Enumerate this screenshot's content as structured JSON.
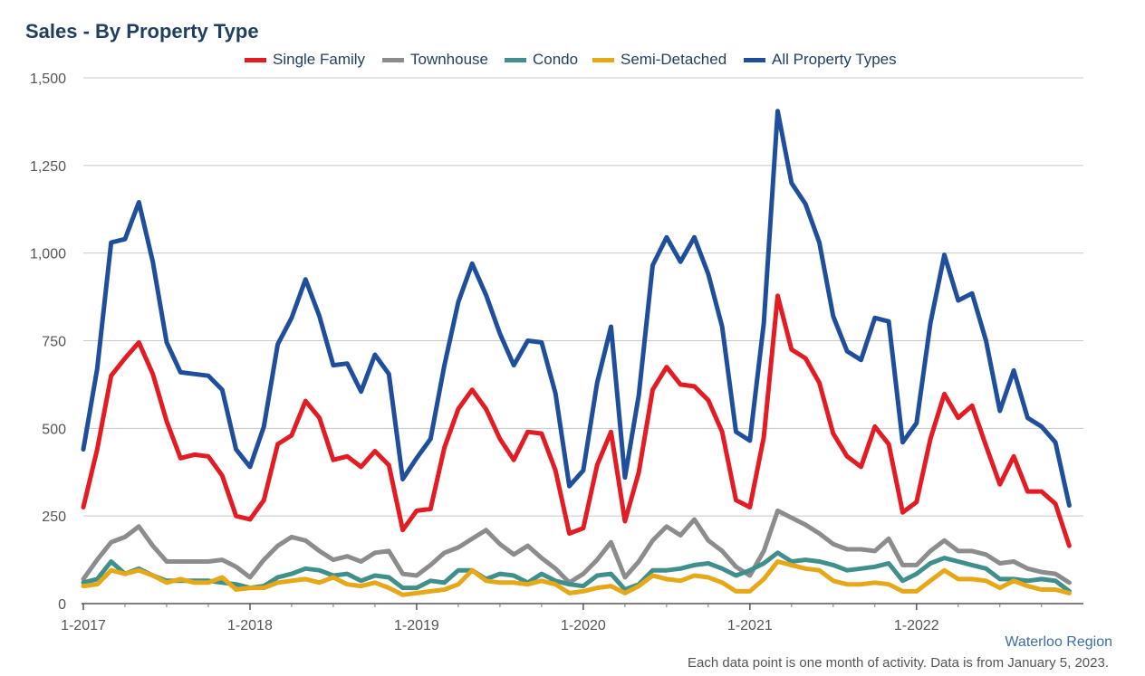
{
  "title": "Sales - By Property Type",
  "footer": {
    "region": "Waterloo Region",
    "note": "Each data point is one month of activity. Data is from January 5, 2023."
  },
  "chart_data": {
    "type": "line",
    "title": "Sales - By Property Type",
    "xlabel": "",
    "ylabel": "",
    "ylim": [
      0,
      1500
    ],
    "y_ticks": [
      0,
      250,
      500,
      750,
      1000,
      1250,
      1500
    ],
    "y_tick_labels": [
      "0",
      "250",
      "500",
      "750",
      "1,000",
      "1,250",
      "1,500"
    ],
    "x_start": "1-2017",
    "x_tick_labels": [
      "1-2017",
      "1-2018",
      "1-2019",
      "1-2020",
      "1-2021",
      "1-2022"
    ],
    "grid": true,
    "legend_position": "top",
    "series": [
      {
        "name": "Single Family",
        "color": "#e31b23",
        "values": [
          275,
          440,
          650,
          700,
          745,
          655,
          520,
          415,
          425,
          420,
          365,
          250,
          240,
          295,
          455,
          480,
          578,
          530,
          410,
          420,
          390,
          435,
          395,
          210,
          265,
          270,
          445,
          555,
          610,
          555,
          470,
          410,
          490,
          485,
          380,
          200,
          215,
          395,
          490,
          235,
          375,
          610,
          675,
          625,
          620,
          580,
          490,
          295,
          275,
          475,
          878,
          725,
          700,
          630,
          485,
          420,
          390,
          505,
          455,
          260,
          290,
          470,
          598,
          530,
          565,
          450,
          340,
          420,
          320,
          320,
          285,
          165
        ]
      },
      {
        "name": "Townhouse",
        "color": "#8c8c8c",
        "values": [
          70,
          125,
          175,
          190,
          220,
          165,
          120,
          120,
          120,
          120,
          125,
          105,
          75,
          125,
          165,
          190,
          180,
          150,
          125,
          135,
          120,
          145,
          150,
          85,
          80,
          110,
          145,
          160,
          185,
          210,
          170,
          140,
          165,
          130,
          100,
          60,
          85,
          125,
          175,
          75,
          120,
          180,
          220,
          195,
          240,
          180,
          150,
          105,
          80,
          150,
          265,
          245,
          225,
          200,
          170,
          155,
          155,
          150,
          185,
          110,
          110,
          150,
          180,
          150,
          150,
          140,
          115,
          120,
          100,
          90,
          85,
          60
        ]
      },
      {
        "name": "Condo",
        "color": "#3f908c",
        "values": [
          60,
          70,
          120,
          85,
          100,
          80,
          65,
          65,
          65,
          65,
          60,
          55,
          45,
          50,
          75,
          85,
          100,
          95,
          80,
          85,
          65,
          80,
          75,
          45,
          45,
          65,
          60,
          95,
          95,
          70,
          85,
          80,
          60,
          85,
          65,
          55,
          50,
          80,
          85,
          40,
          55,
          95,
          95,
          100,
          110,
          115,
          100,
          80,
          95,
          115,
          145,
          120,
          125,
          120,
          110,
          95,
          100,
          105,
          115,
          65,
          85,
          115,
          130,
          120,
          110,
          100,
          70,
          70,
          65,
          70,
          65,
          35
        ]
      },
      {
        "name": "Semi-Detached",
        "color": "#e6a817",
        "values": [
          50,
          55,
          95,
          85,
          95,
          80,
          60,
          70,
          60,
          60,
          75,
          40,
          45,
          45,
          60,
          65,
          70,
          60,
          75,
          55,
          50,
          60,
          45,
          25,
          30,
          35,
          40,
          55,
          95,
          65,
          60,
          60,
          55,
          65,
          55,
          30,
          35,
          45,
          50,
          30,
          50,
          80,
          70,
          65,
          80,
          75,
          60,
          35,
          35,
          70,
          120,
          110,
          100,
          95,
          65,
          55,
          55,
          60,
          55,
          35,
          35,
          65,
          95,
          70,
          70,
          65,
          45,
          65,
          50,
          40,
          40,
          30
        ]
      },
      {
        "name": "All Property Types",
        "color": "#1f4e9c",
        "values": [
          440,
          670,
          1030,
          1040,
          1145,
          975,
          745,
          660,
          655,
          650,
          610,
          440,
          390,
          505,
          740,
          815,
          925,
          820,
          680,
          685,
          605,
          710,
          655,
          355,
          415,
          470,
          680,
          860,
          970,
          880,
          770,
          680,
          750,
          745,
          600,
          335,
          380,
          630,
          790,
          360,
          595,
          965,
          1045,
          975,
          1045,
          940,
          790,
          490,
          465,
          800,
          1405,
          1200,
          1140,
          1030,
          820,
          720,
          695,
          815,
          805,
          460,
          515,
          800,
          995,
          865,
          885,
          750,
          550,
          665,
          530,
          505,
          460,
          280
        ]
      }
    ]
  }
}
